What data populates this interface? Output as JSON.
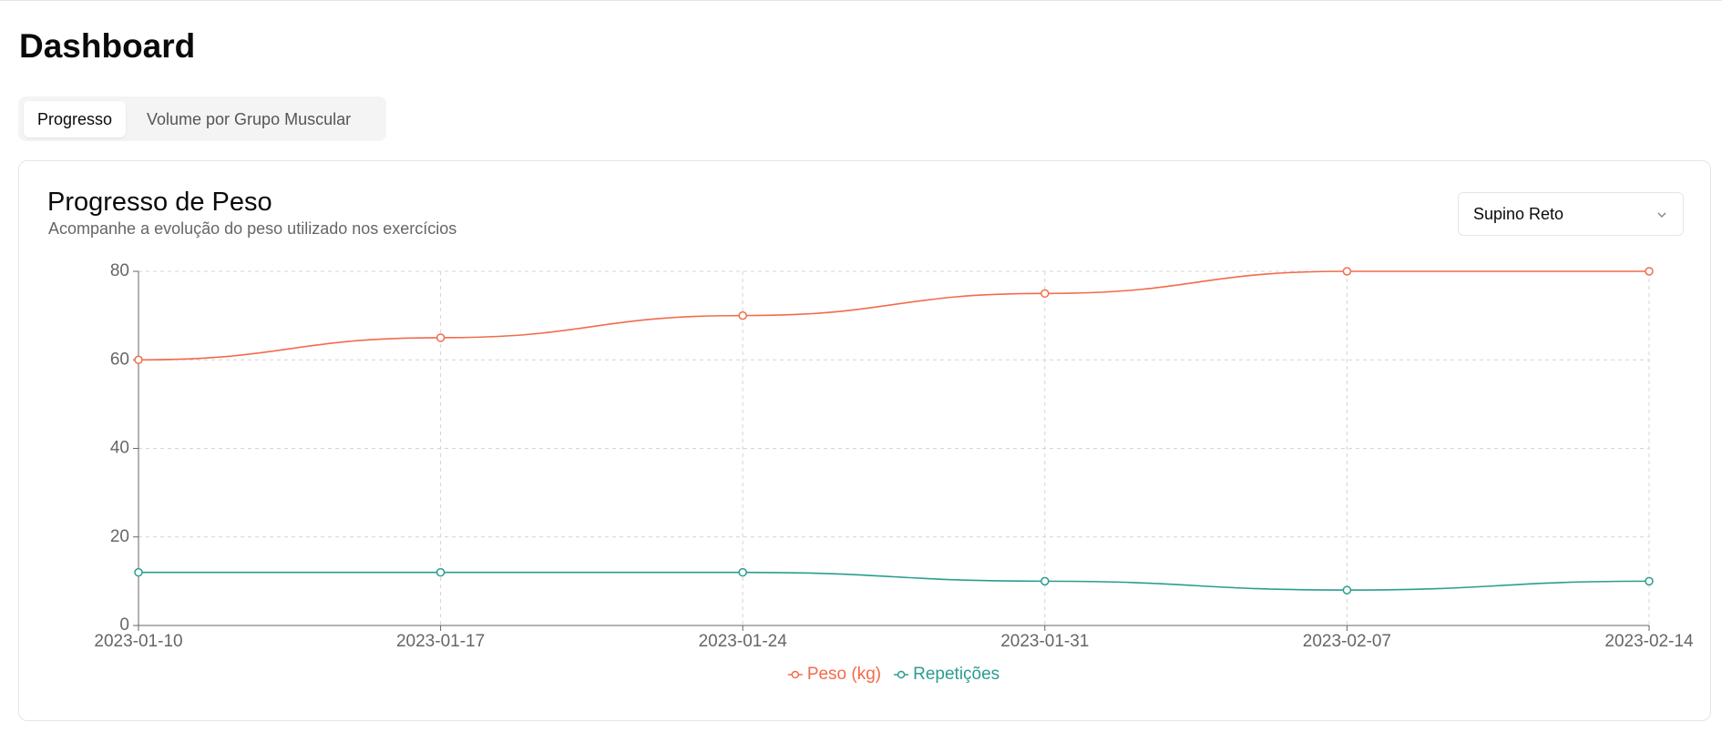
{
  "header": {
    "title": "Dashboard"
  },
  "tabs": [
    "Progresso",
    "Volume por Grupo Muscular"
  ],
  "card": {
    "title": "Progresso de Peso",
    "subtitle": "Acompanhe a evolução do peso utilizado nos exercícios",
    "select": "Supino Reto"
  },
  "chart_data": {
    "type": "line",
    "categories": [
      "2023-01-10",
      "2023-01-17",
      "2023-01-24",
      "2023-01-31",
      "2023-02-07",
      "2023-02-14"
    ],
    "series": [
      {
        "name": "Peso (kg)",
        "color": "#f26b4a",
        "values": [
          60,
          65,
          70,
          75,
          80,
          80
        ]
      },
      {
        "name": "Repetições",
        "color": "#2a9d8f",
        "values": [
          12,
          12,
          12,
          10,
          8,
          10
        ]
      }
    ],
    "ylim": [
      0,
      80
    ],
    "yticks": [
      0,
      20,
      40,
      60,
      80
    ],
    "grid": true,
    "legend": "bottom"
  }
}
